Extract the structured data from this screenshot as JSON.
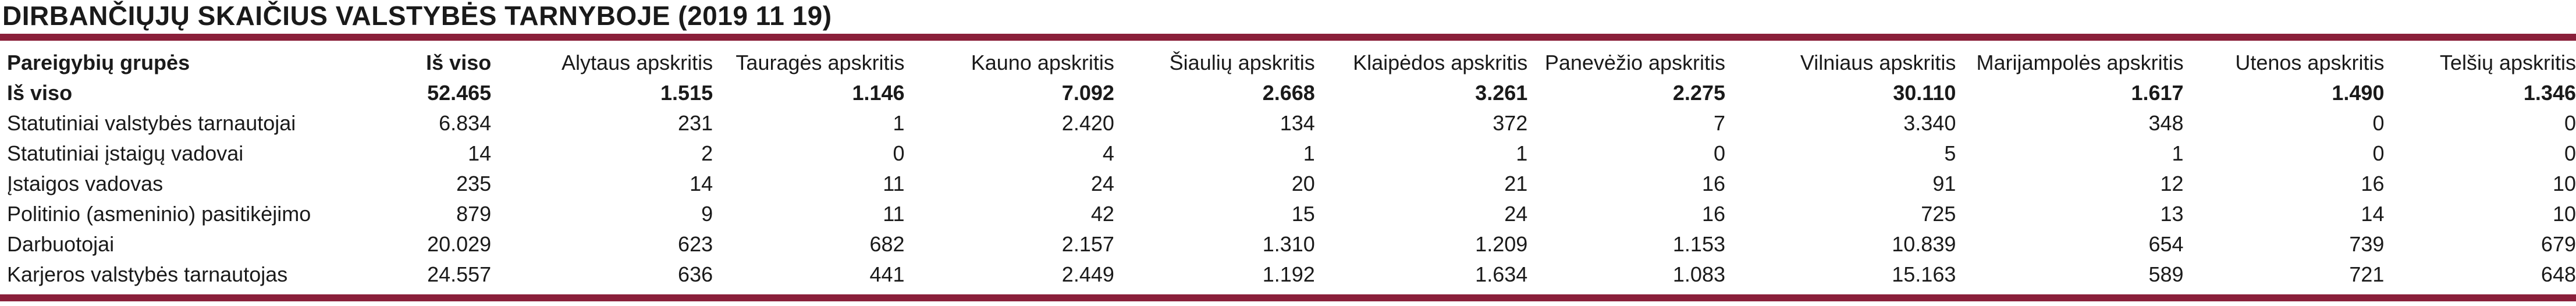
{
  "title": "DIRBANČIŲJŲ SKAIČIUS VALSTYBĖS TARNYBOJE (2019 11 19)",
  "colors": {
    "accent_rule": "#8a1f3a"
  },
  "table": {
    "headers": [
      "Pareigybių grupės",
      "Iš viso",
      "Alytaus apskritis",
      "Tauragės apskritis",
      "Kauno apskritis",
      "Šiaulių apskritis",
      "Klaipėdos apskritis",
      "Panevėžio apskritis",
      "Vilniaus apskritis",
      "Marijampolės apskritis",
      "Utenos apskritis",
      "Telšių apskritis"
    ],
    "rows": [
      [
        "Iš viso",
        "52.465",
        "1.515",
        "1.146",
        "7.092",
        "2.668",
        "3.261",
        "2.275",
        "30.110",
        "1.617",
        "1.490",
        "1.346"
      ],
      [
        "Statutiniai valstybės tarnautojai",
        "6.834",
        "231",
        "1",
        "2.420",
        "134",
        "372",
        "7",
        "3.340",
        "348",
        "0",
        "0"
      ],
      [
        "Statutiniai įstaigų vadovai",
        "14",
        "2",
        "0",
        "4",
        "1",
        "1",
        "0",
        "5",
        "1",
        "0",
        "0"
      ],
      [
        "Įstaigos vadovas",
        "235",
        "14",
        "11",
        "24",
        "20",
        "21",
        "16",
        "91",
        "12",
        "16",
        "10"
      ],
      [
        "Politinio (asmeninio) pasitikėjimo",
        "879",
        "9",
        "11",
        "42",
        "15",
        "24",
        "16",
        "725",
        "13",
        "14",
        "10"
      ],
      [
        "Darbuotojai",
        "20.029",
        "623",
        "682",
        "2.157",
        "1.310",
        "1.209",
        "1.153",
        "10.839",
        "654",
        "739",
        "679"
      ],
      [
        "Karjeros valstybės tarnautojas",
        "24.557",
        "636",
        "441",
        "2.449",
        "1.192",
        "1.634",
        "1.083",
        "15.163",
        "589",
        "721",
        "648"
      ]
    ]
  }
}
